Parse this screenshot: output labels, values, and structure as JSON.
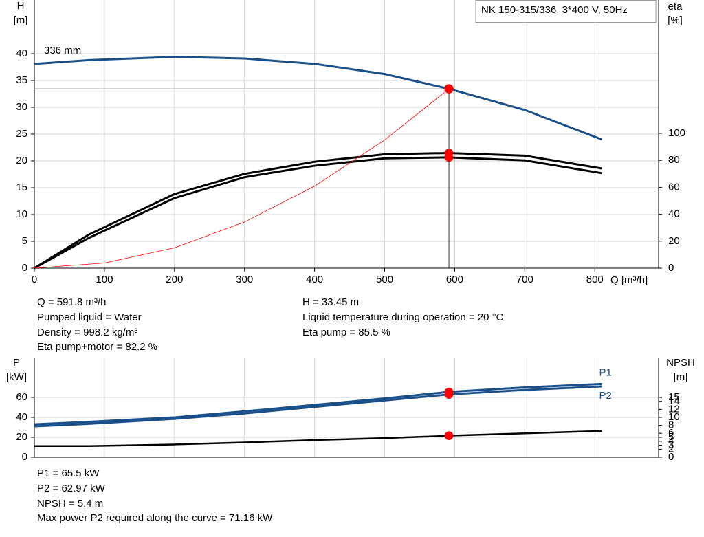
{
  "chart_data": [
    {
      "type": "line",
      "title": "NK 150-315/336, 3*400 V, 50Hz",
      "annotation": "336 mm",
      "xlabel": "Q [m³/h]",
      "ylabel": "H",
      "yunit": "[m]",
      "y2label": "eta",
      "y2unit": "[%]",
      "xlim": [
        0,
        891
      ],
      "xticks": [
        0,
        100,
        200,
        300,
        400,
        500,
        600,
        700,
        800
      ],
      "ylim": [
        0,
        50
      ],
      "yticks": [
        0,
        5,
        10,
        15,
        20,
        25,
        30,
        35,
        40
      ],
      "y2lim": [
        0,
        199
      ],
      "y2ticks": [
        0,
        20,
        40,
        60,
        80,
        100
      ],
      "grid": true,
      "operating_point": {
        "x": 591.8,
        "y": 33.45
      },
      "series": [
        {
          "color": "#1a4f8a",
          "width": 3,
          "marker_fill": "#ffff00",
          "x": [
            0,
            78,
            200,
            300,
            400,
            500,
            591.8,
            700,
            810
          ],
          "values": [
            38.1,
            38.8,
            39.4,
            39.1,
            38.1,
            36.2,
            33.45,
            29.5,
            24
          ]
        },
        {
          "color": "#000000",
          "width": 3,
          "axis": "y2",
          "x": [
            0,
            78,
            200,
            300,
            400,
            500,
            591.8,
            700,
            810
          ],
          "values": [
            0,
            25,
            55,
            70,
            79,
            84.5,
            85.5,
            83.5,
            74
          ]
        },
        {
          "color": "#000000",
          "width": 3,
          "axis": "y2",
          "x": [
            0,
            78,
            200,
            300,
            400,
            500,
            591.8,
            700,
            810
          ],
          "values": [
            0,
            22.5,
            52,
            67.5,
            76,
            81.5,
            82.2,
            80,
            70.5
          ]
        },
        {
          "color": "#ff0000",
          "width": 0.8,
          "x": [
            0,
            100,
            200,
            300,
            400,
            500,
            591.8
          ],
          "values": [
            0,
            0.96,
            3.8,
            8.6,
            15.3,
            23.9,
            33.45
          ]
        }
      ],
      "info_left": [
        "Q = 591.8 m³/h",
        "Pumped liquid = Water",
        "Density = 998.2 kg/m³",
        "Eta pump+motor = 82.2 %"
      ],
      "info_right": [
        "H = 33.45 m",
        "Liquid temperature during operation = 20 °C",
        "Eta pump = 85.5 %"
      ]
    },
    {
      "type": "line",
      "ylabel": "P",
      "yunit": "[kW]",
      "y2label": "NPSH",
      "y2unit": "[m]",
      "xlim": [
        0,
        891
      ],
      "xticks": [
        0,
        100,
        200,
        300,
        400,
        500,
        600,
        700,
        800
      ],
      "xtick_labels": false,
      "ylim": [
        0,
        100
      ],
      "yticks": [
        0,
        20,
        40,
        60
      ],
      "y2lim": [
        0,
        25
      ],
      "y2ticks": [
        0,
        2,
        3,
        4,
        5,
        6,
        8,
        10,
        12,
        14,
        15
      ],
      "grid": true,
      "operating_point": {
        "x": 591.8
      },
      "series": [
        {
          "name": "P1",
          "color": "#1a4f8a",
          "width": 3,
          "x": [
            0,
            78,
            200,
            300,
            400,
            500,
            591.8,
            700,
            810
          ],
          "values": [
            33,
            35.5,
            40,
            46,
            52.5,
            59,
            65.5,
            70,
            73.5
          ]
        },
        {
          "name": "P2",
          "color": "#1a4f8a",
          "width": 3,
          "x": [
            0,
            78,
            200,
            300,
            400,
            500,
            591.8,
            700,
            810
          ],
          "values": [
            31,
            33.5,
            38.5,
            44,
            50.5,
            57,
            62.97,
            67.5,
            71
          ]
        },
        {
          "color": "#000000",
          "width": 2.5,
          "axis": "y2",
          "x": [
            0,
            78,
            200,
            300,
            400,
            500,
            591.8,
            700,
            810
          ],
          "values": [
            2.8,
            2.8,
            3.2,
            3.7,
            4.3,
            4.8,
            5.4,
            6.0,
            6.6
          ]
        }
      ],
      "info": [
        "P1 = 65.5 kW",
        "P2 = 62.97 kW",
        "NPSH = 5.4 m",
        "Max power P2 required along the curve = 71.16 kW"
      ]
    }
  ]
}
